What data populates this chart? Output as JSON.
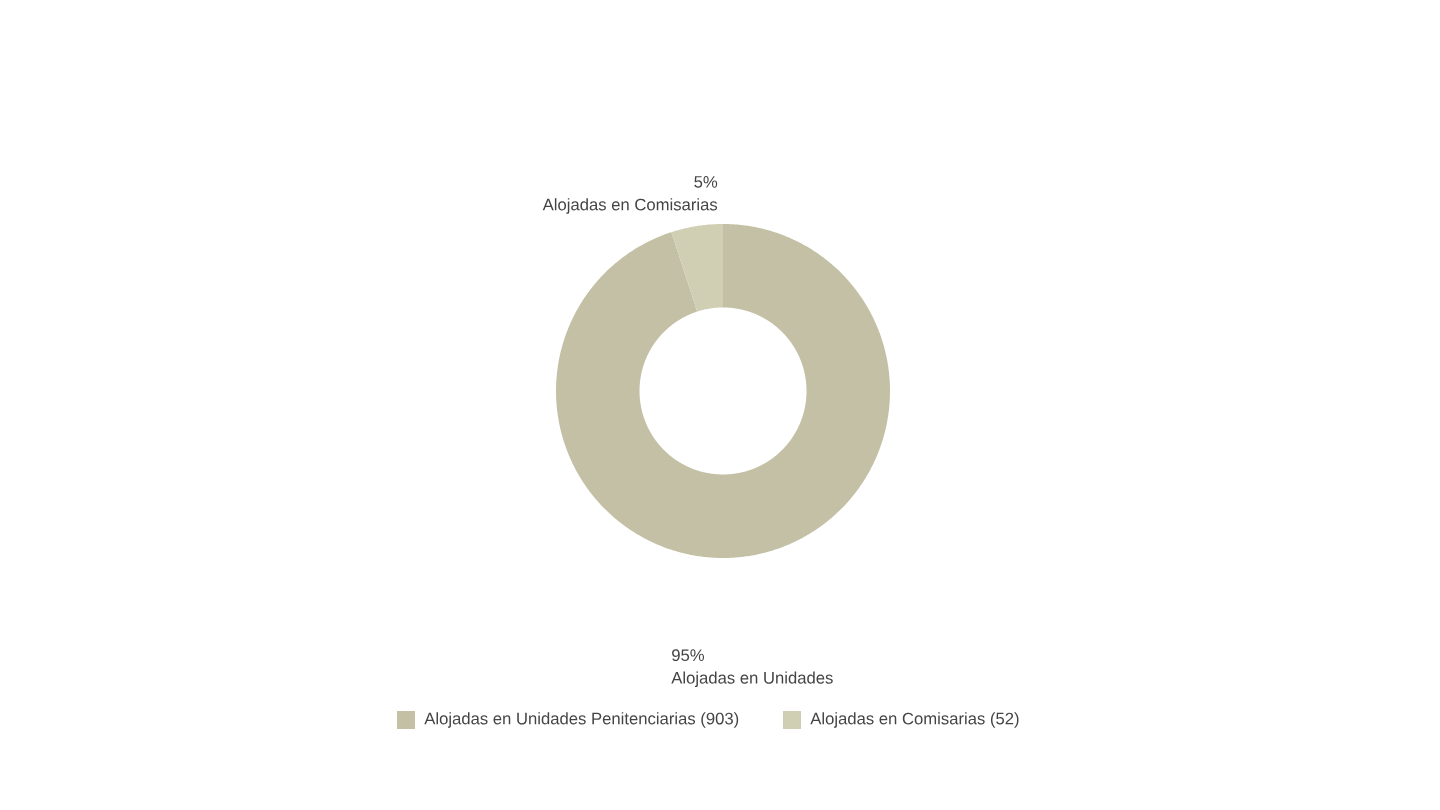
{
  "chart_data": {
    "type": "donut",
    "categories": [
      "Alojadas en Unidades Penitenciarias (903)",
      "Alojadas en Comisarias (52)"
    ],
    "values": [
      95,
      5
    ],
    "colors": [
      "#c3c0a6",
      "#d1cfb3"
    ],
    "value_labels": [
      "95%",
      "5%"
    ],
    "annotations": [
      "Alojadas en Unidades",
      "Alojadas en Comisarias"
    ],
    "legend": "bottom"
  }
}
